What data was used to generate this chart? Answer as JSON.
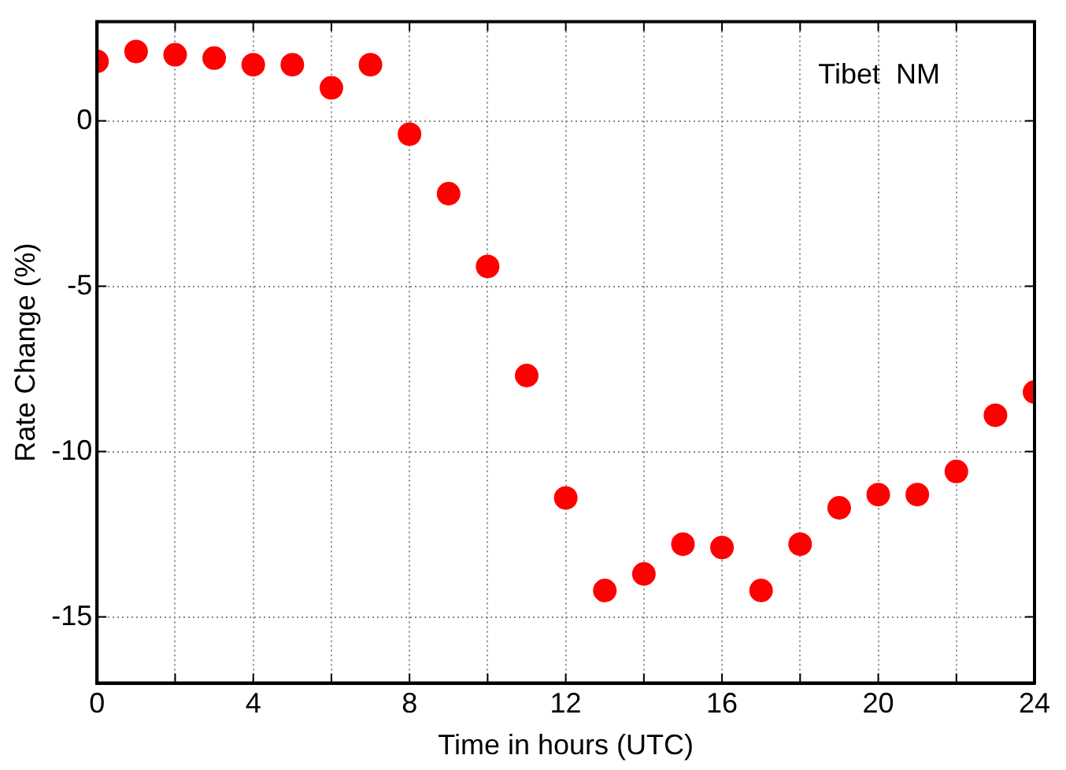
{
  "chart_data": {
    "type": "scatter",
    "xlabel": "Time in hours (UTC)",
    "ylabel": "Rate Change (%)",
    "annotations": [
      "Tibet  NM"
    ],
    "x": [
      0,
      1,
      2,
      3,
      4,
      5,
      6,
      7,
      8,
      9,
      10,
      11,
      12,
      13,
      14,
      15,
      16,
      17,
      18,
      19,
      20,
      21,
      22,
      23,
      24
    ],
    "series": [
      {
        "color": "#ff0000",
        "values": [
          1.8,
          2.1,
          2.0,
          1.9,
          1.7,
          1.7,
          1.0,
          1.7,
          -0.4,
          -2.2,
          -4.4,
          -7.7,
          -11.4,
          -14.2,
          -13.7,
          -12.8,
          -12.9,
          -14.2,
          -12.8,
          -11.7,
          -11.3,
          -11.3,
          -10.6,
          -8.9,
          -8.2
        ]
      }
    ],
    "xlim": [
      0,
      24
    ],
    "xticks": [
      0,
      {
        "value": 2,
        "label": null
      },
      4,
      {
        "value": 6,
        "label": null
      },
      8,
      {
        "value": 10,
        "label": null
      },
      12,
      {
        "value": 14,
        "label": null
      },
      16,
      {
        "value": 18,
        "label": null
      },
      20,
      {
        "value": 22,
        "label": null
      },
      24
    ],
    "ylim": [
      -17,
      3
    ],
    "yticks": [
      -15,
      -10,
      -5,
      0
    ],
    "grid": true,
    "legend": false,
    "marker": "circle"
  }
}
